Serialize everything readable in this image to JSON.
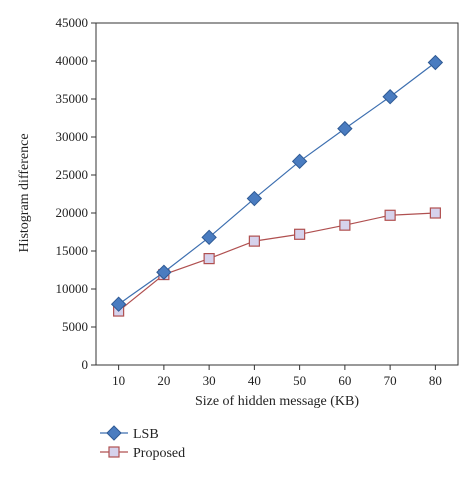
{
  "chart_data": {
    "type": "line",
    "xlabel": "Size of hidden message (KB)",
    "ylabel": "Histogram difference",
    "x": [
      10,
      20,
      30,
      40,
      50,
      60,
      70,
      80
    ],
    "xlim": [
      5,
      85
    ],
    "ylim": [
      0,
      45000
    ],
    "yticks": [
      0,
      5000,
      10000,
      15000,
      20000,
      25000,
      30000,
      35000,
      40000,
      45000
    ],
    "grid": false,
    "legend_position": "bottom-left",
    "series": [
      {
        "name": "LSB",
        "marker": "diamond",
        "color": "#3d6fb0",
        "values": [
          8000,
          12200,
          16800,
          21900,
          26800,
          31100,
          35300,
          39800
        ]
      },
      {
        "name": "Proposed",
        "marker": "square",
        "color": "#b05050",
        "values": [
          7100,
          11900,
          14000,
          16300,
          17200,
          18400,
          19700,
          20000
        ]
      }
    ]
  }
}
